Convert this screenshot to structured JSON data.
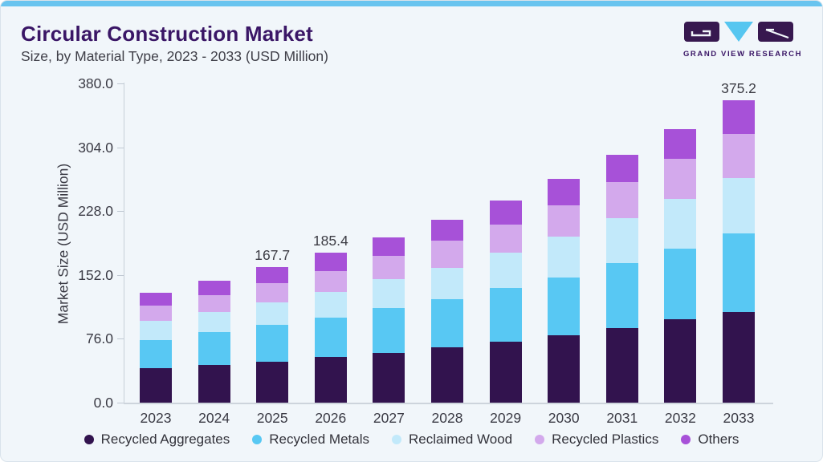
{
  "header": {
    "title": "Circular Construction Market",
    "subtitle": "Size, by Material Type, 2023 - 2033 (USD Million)",
    "brand": "GRAND VIEW RESEARCH"
  },
  "colors": {
    "accent_bar": "#69C4EF",
    "background": "#F1F6FA",
    "title_text": "#3A1666",
    "logo_purple": "#37184F",
    "logo_blue": "#56C6F0",
    "axis_text": "#3A3A44",
    "axis_line": "#C7CFD8"
  },
  "chart_data": {
    "type": "bar",
    "stacked": true,
    "title": "Circular Construction Market",
    "subtitle": "Size, by Material Type, 2023 - 2033 (USD Million)",
    "xlabel": "",
    "ylabel": "Market Size (USD Million)",
    "ylim": [
      0,
      380
    ],
    "yticks": [
      380.0,
      304.0,
      228.0,
      152.0,
      76.0,
      0.0
    ],
    "grid": false,
    "legend_position": "bottom",
    "categories": [
      "2023",
      "2024",
      "2025",
      "2026",
      "2027",
      "2028",
      "2029",
      "2030",
      "2031",
      "2032",
      "2033"
    ],
    "series": [
      {
        "name": "Recycled Aggregates",
        "color": "#32134E",
        "values": [
          42.4,
          46.3,
          50.7,
          56.2,
          62.0,
          68.9,
          75.7,
          83.3,
          92.9,
          102.9,
          112.7
        ]
      },
      {
        "name": "Recycled Metals",
        "color": "#58C8F3",
        "values": [
          35.3,
          40.7,
          45.4,
          49.6,
          54.8,
          59.0,
          66.0,
          72.1,
          80.0,
          88.3,
          97.2
        ]
      },
      {
        "name": "Reclaimed Wood",
        "color": "#C2E9FA",
        "values": [
          23.2,
          25.8,
          28.2,
          31.3,
          36.6,
          39.0,
          44.1,
          50.6,
          55.6,
          61.1,
          68.8
        ]
      },
      {
        "name": "Recycled Plastics",
        "color": "#D3A9EC",
        "values": [
          19.8,
          20.4,
          24.2,
          25.8,
          28.4,
          33.5,
          35.2,
          38.7,
          45.3,
          49.6,
          54.4
        ]
      },
      {
        "name": "Others",
        "color": "#A751D8",
        "values": [
          15.9,
          18.3,
          19.2,
          22.5,
          23.2,
          26.0,
          29.8,
          33.0,
          33.0,
          37.4,
          42.1
        ]
      }
    ],
    "totals": [
      136.6,
      151.5,
      167.7,
      185.4,
      205.0,
      226.4,
      250.8,
      277.7,
      306.8,
      339.3,
      375.2
    ],
    "bar_labels": [
      {
        "category": "2025",
        "text": "167.7"
      },
      {
        "category": "2026",
        "text": "185.4"
      },
      {
        "category": "2033",
        "text": "375.2"
      }
    ]
  }
}
